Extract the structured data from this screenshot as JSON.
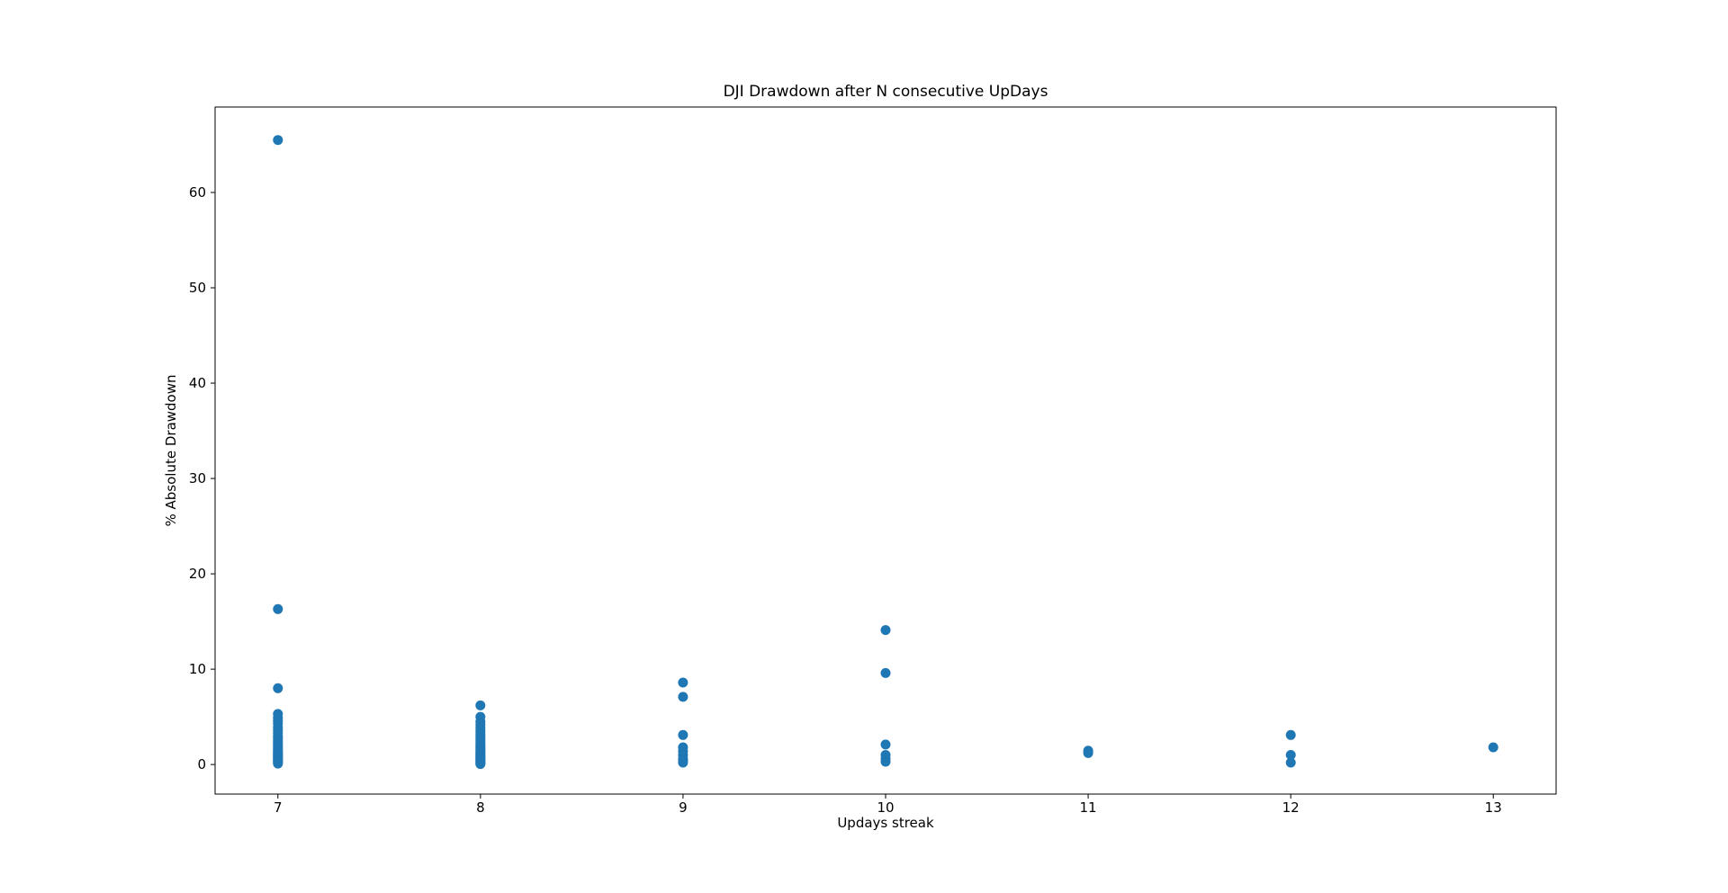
{
  "chart_data": {
    "type": "scatter",
    "title": "DJI Drawdown after N consecutive UpDays",
    "xlabel": "Updays streak",
    "ylabel": "% Absolute Drawdown",
    "xlim": [
      6.69,
      13.31
    ],
    "ylim": [
      -3.1,
      68.96
    ],
    "xticks": [
      7,
      8,
      9,
      10,
      11,
      12,
      13
    ],
    "yticks": [
      0,
      10,
      20,
      30,
      40,
      50,
      60
    ],
    "grid": false,
    "legend_position": "none",
    "marker_color": "#1f77b4",
    "axis_color": "#000000",
    "background_color": "#ffffff",
    "points": [
      {
        "x": 7,
        "y": [
          65.5,
          16.3,
          8.0,
          5.3,
          4.9,
          4.6,
          4.3,
          3.9,
          3.6,
          3.3,
          3.0,
          2.8,
          2.6,
          2.4,
          2.2,
          2.05,
          1.9,
          1.75,
          1.6,
          1.45,
          1.3,
          1.2,
          1.1,
          1.0,
          0.9,
          0.8,
          0.7,
          0.6,
          0.5,
          0.4,
          0.3,
          0.2,
          0.1
        ]
      },
      {
        "x": 8,
        "y": [
          6.2,
          5.0,
          4.5,
          4.2,
          3.9,
          3.6,
          3.35,
          3.1,
          2.9,
          2.7,
          2.5,
          2.3,
          2.1,
          1.95,
          1.8,
          1.65,
          1.5,
          1.38,
          1.25,
          1.12,
          1.0,
          0.9,
          0.8,
          0.7,
          0.6,
          0.5,
          0.4,
          0.3,
          0.2,
          0.1,
          0.05
        ]
      },
      {
        "x": 9,
        "y": [
          8.6,
          7.1,
          3.1,
          1.8,
          1.4,
          1.0,
          0.6,
          0.4,
          0.2
        ]
      },
      {
        "x": 10,
        "y": [
          14.1,
          9.6,
          2.1,
          1.0,
          0.6,
          0.3
        ]
      },
      {
        "x": 11,
        "y": [
          1.45,
          1.2
        ]
      },
      {
        "x": 12,
        "y": [
          3.1,
          1.0,
          0.2
        ]
      },
      {
        "x": 13,
        "y": [
          1.8
        ]
      }
    ]
  }
}
